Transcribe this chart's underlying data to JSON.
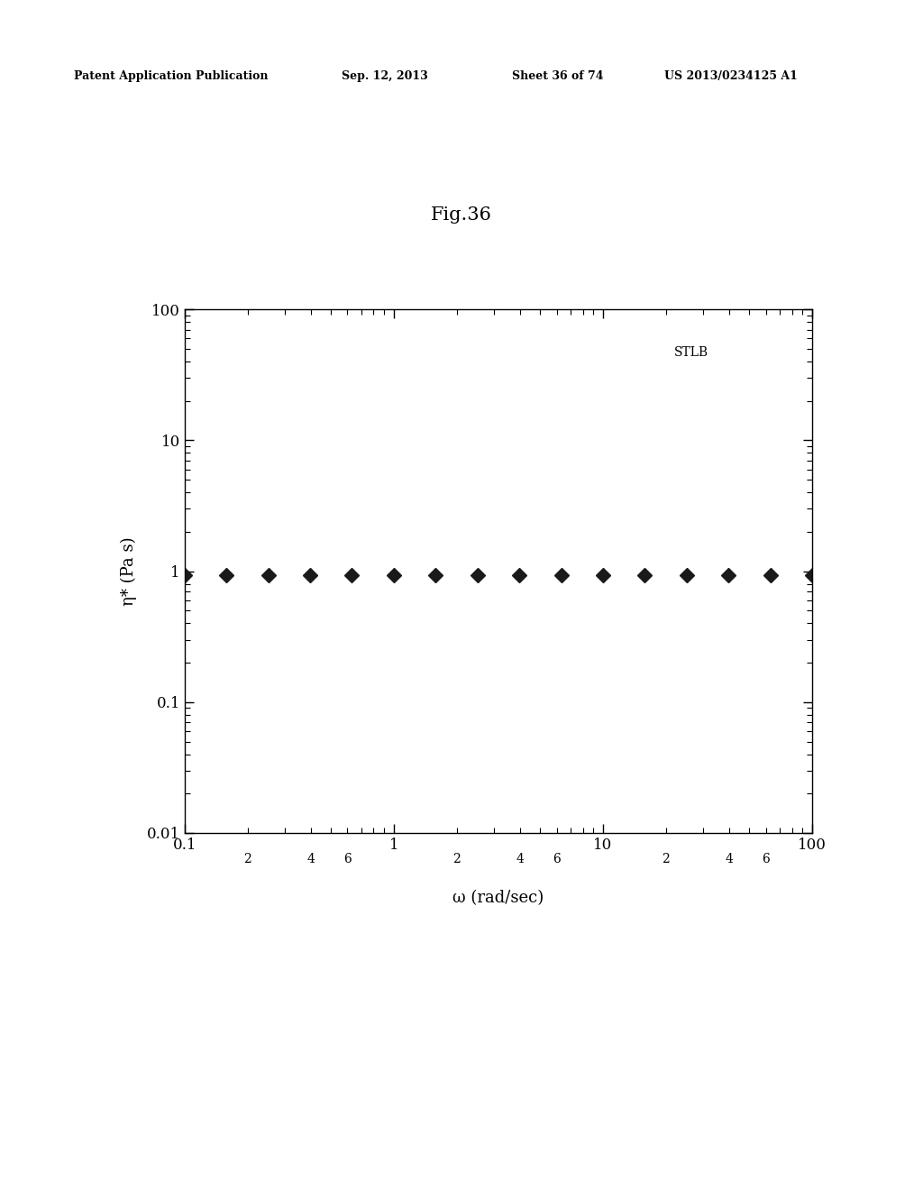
{
  "title": "Fig.36",
  "patent_header": "Patent Application Publication",
  "patent_date": "Sep. 12, 2013",
  "patent_sheet": "Sheet 36 of 74",
  "patent_number": "US 2013/0234125 A1",
  "xlabel": "ω (rad/sec)",
  "ylabel": "η* (Pa s)",
  "annotation": "STLB",
  "xlim": [
    0.1,
    100
  ],
  "ylim": [
    0.01,
    100
  ],
  "data_x": [
    0.1,
    0.158,
    0.251,
    0.398,
    0.631,
    1.0,
    1.585,
    2.512,
    3.981,
    6.31,
    10.0,
    15.85,
    25.12,
    39.81,
    63.1,
    100.0
  ],
  "data_y": [
    0.93,
    0.93,
    0.93,
    0.93,
    0.93,
    0.93,
    0.93,
    0.93,
    0.93,
    0.93,
    0.93,
    0.93,
    0.93,
    0.93,
    0.93,
    0.93
  ],
  "marker_color": "#1a1a1a",
  "marker_size": 8,
  "background_color": "#ffffff",
  "title_fontsize": 15,
  "label_fontsize": 13,
  "tick_fontsize": 12,
  "minor_tick_fontsize": 10,
  "annotation_fontsize": 10,
  "header_fontsize": 9
}
